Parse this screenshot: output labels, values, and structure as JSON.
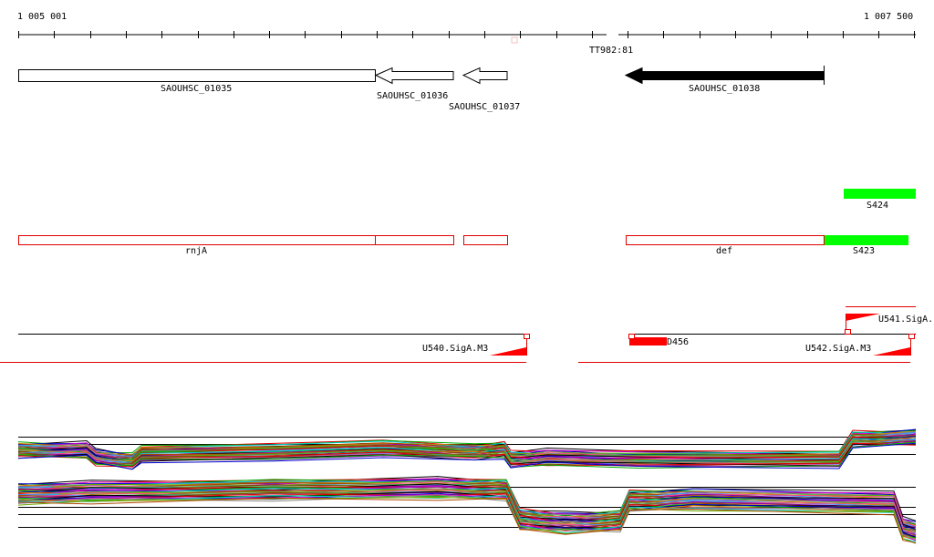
{
  "ruler": {
    "start_label": "1 005 001",
    "end_label": "1 007 500",
    "marker_label": "TT982:81"
  },
  "genes": [
    {
      "name": "SAOUHSC_01035",
      "strand": "forward",
      "style": "open"
    },
    {
      "name": "SAOUHSC_01036",
      "strand": "reverse",
      "style": "open"
    },
    {
      "name": "SAOUHSC_01037",
      "strand": "reverse",
      "style": "open"
    },
    {
      "name": "SAOUHSC_01038",
      "strand": "reverse",
      "style": "filled"
    }
  ],
  "features": {
    "s424": "S424",
    "rnja": "rnjA",
    "def": "def",
    "s423": "S423",
    "u541": "U541.SigA.",
    "u540": "U540.SigA.M3",
    "d456": "D456",
    "u542": "U542.SigA.M3"
  },
  "colors": {
    "gene_outline": "#000000",
    "gene_filled": "#000000",
    "annotation_outline": "#e00000",
    "green_feature": "#00ff00",
    "promoter": "#ff0000"
  }
}
